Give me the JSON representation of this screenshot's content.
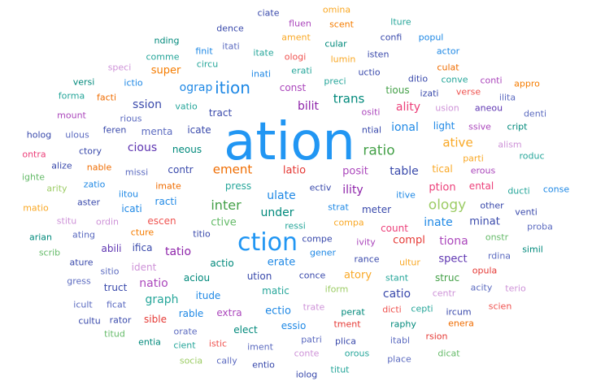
{
  "words": [
    {
      "text": "ation",
      "color": "#2196f3"
    },
    {
      "text": "ction",
      "color": "#2196f3"
    },
    {
      "text": "ition",
      "color": "#1e88e5"
    },
    {
      "text": "ratio",
      "color": "#43a047"
    },
    {
      "text": "inter",
      "color": "#43a047"
    },
    {
      "text": "ology",
      "color": "#9ccc65"
    },
    {
      "text": "ement",
      "color": "#ef6c00"
    },
    {
      "text": "ative",
      "color": "#f9a825"
    },
    {
      "text": "trans",
      "color": "#00897b"
    },
    {
      "text": "ssion",
      "color": "#3949ab"
    },
    {
      "text": "ograp",
      "color": "#1e88e5"
    },
    {
      "text": "table",
      "color": "#3949ab"
    },
    {
      "text": "ulate",
      "color": "#1e88e5"
    },
    {
      "text": "ility",
      "color": "#8e24aa"
    },
    {
      "text": "tatio",
      "color": "#8e24aa"
    },
    {
      "text": "graph",
      "color": "#26a69a"
    },
    {
      "text": "catio",
      "color": "#3949ab"
    },
    {
      "text": "tiona",
      "color": "#ab47bc"
    },
    {
      "text": "natio",
      "color": "#ab47bc"
    },
    {
      "text": "inate",
      "color": "#1e88e5"
    },
    {
      "text": "under",
      "color": "#00897b"
    },
    {
      "text": "ality",
      "color": "#ec407a"
    },
    {
      "text": "cious",
      "color": "#5e35b1"
    },
    {
      "text": "ional",
      "color": "#1e88e5"
    },
    {
      "text": "latio",
      "color": "#e53935"
    },
    {
      "text": "posit",
      "color": "#ab47bc"
    },
    {
      "text": "ption",
      "color": "#ec407a"
    },
    {
      "text": "ctive",
      "color": "#66bb6a"
    },
    {
      "text": "erate",
      "color": "#1e88e5"
    },
    {
      "text": "ectio",
      "color": "#1e88e5"
    },
    {
      "text": "atory",
      "color": "#f9a825"
    },
    {
      "text": "spect",
      "color": "#5e35b1"
    },
    {
      "text": "compl",
      "color": "#e53935"
    },
    {
      "text": "minat",
      "color": "#3949ab"
    },
    {
      "text": "bilit",
      "color": "#8e24aa"
    },
    {
      "text": "tract",
      "color": "#3949ab"
    },
    {
      "text": "menta",
      "color": "#5c6bc0"
    },
    {
      "text": "icate",
      "color": "#3949ab"
    },
    {
      "text": "super",
      "color": "#f57c00"
    },
    {
      "text": "const",
      "color": "#ab47bc"
    },
    {
      "text": "press",
      "color": "#26a69a"
    },
    {
      "text": "actio",
      "color": "#00897b"
    },
    {
      "text": "aciou",
      "color": "#00897b"
    },
    {
      "text": "itude",
      "color": "#1e88e5"
    },
    {
      "text": "struc",
      "color": "#43a047"
    },
    {
      "text": "ution",
      "color": "#3949ab"
    },
    {
      "text": "matic",
      "color": "#26a69a"
    },
    {
      "text": "elect",
      "color": "#00897b"
    },
    {
      "text": "essio",
      "color": "#1e88e5"
    },
    {
      "text": "extra",
      "color": "#ab47bc"
    },
    {
      "text": "rable",
      "color": "#1e88e5"
    },
    {
      "text": "sible",
      "color": "#e53935"
    },
    {
      "text": "tious",
      "color": "#43a047"
    },
    {
      "text": "meter",
      "color": "#3949ab"
    },
    {
      "text": "count",
      "color": "#ec407a"
    },
    {
      "text": "tical",
      "color": "#f9a825"
    },
    {
      "text": "ental",
      "color": "#ec407a"
    },
    {
      "text": "neous",
      "color": "#00897b"
    },
    {
      "text": "contr",
      "color": "#3949ab"
    },
    {
      "text": "racti",
      "color": "#1e88e5"
    },
    {
      "text": "escen",
      "color": "#ef5350"
    },
    {
      "text": "icati",
      "color": "#1e88e5"
    },
    {
      "text": "abili",
      "color": "#5e35b1"
    },
    {
      "text": "ifica",
      "color": "#3949ab"
    },
    {
      "text": "truct",
      "color": "#3949ab"
    },
    {
      "text": "ident",
      "color": "#ce93d8"
    },
    {
      "text": "cture",
      "color": "#f57c00"
    },
    {
      "text": "imate",
      "color": "#ef6c00"
    },
    {
      "text": "erous",
      "color": "#ab47bc"
    },
    {
      "text": "itive",
      "color": "#1e88e5"
    },
    {
      "text": "strat",
      "color": "#1e88e5"
    },
    {
      "text": "ectiv",
      "color": "#3949ab"
    },
    {
      "text": "light",
      "color": "#1e88e5"
    },
    {
      "text": "ssive",
      "color": "#ab47bc"
    },
    {
      "text": "ntial",
      "color": "#3949ab"
    },
    {
      "text": "ositi",
      "color": "#ab47bc"
    },
    {
      "text": "aneou",
      "color": "#5e35b1"
    },
    {
      "text": "cript",
      "color": "#00897b"
    },
    {
      "text": "denti",
      "color": "#5c6bc0"
    },
    {
      "text": "usion",
      "color": "#ce93d8"
    },
    {
      "text": "verse",
      "color": "#ef5350"
    },
    {
      "text": "ilita",
      "color": "#5c6bc0"
    },
    {
      "text": "conti",
      "color": "#ab47bc"
    },
    {
      "text": "appro",
      "color": "#f57c00"
    },
    {
      "text": "izati",
      "color": "#3949ab"
    },
    {
      "text": "ditio",
      "color": "#3949ab"
    },
    {
      "text": "conve",
      "color": "#26a69a"
    },
    {
      "text": "culat",
      "color": "#ef6c00"
    },
    {
      "text": "actor",
      "color": "#1e88e5"
    },
    {
      "text": "popul",
      "color": "#1e88e5"
    },
    {
      "text": "confi",
      "color": "#3949ab"
    },
    {
      "text": "lture",
      "color": "#26a69a"
    },
    {
      "text": "omina",
      "color": "#f9a825"
    },
    {
      "text": "scent",
      "color": "#f57c00"
    },
    {
      "text": "fluen",
      "color": "#ab47bc"
    },
    {
      "text": "ciate",
      "color": "#3949ab"
    },
    {
      "text": "dence",
      "color": "#3949ab"
    },
    {
      "text": "ament",
      "color": "#f9a825"
    },
    {
      "text": "cular",
      "color": "#00897b"
    },
    {
      "text": "isten",
      "color": "#3949ab"
    },
    {
      "text": "lumin",
      "color": "#f9a825"
    },
    {
      "text": "ologi",
      "color": "#ef5350"
    },
    {
      "text": "itate",
      "color": "#26a69a"
    },
    {
      "text": "erati",
      "color": "#26a69a"
    },
    {
      "text": "uctio",
      "color": "#3949ab"
    },
    {
      "text": "preci",
      "color": "#26a69a"
    },
    {
      "text": "inati",
      "color": "#1e88e5"
    },
    {
      "text": "circu",
      "color": "#26a69a"
    },
    {
      "text": "finit",
      "color": "#1e88e5"
    },
    {
      "text": "itati",
      "color": "#5c6bc0"
    },
    {
      "text": "nding",
      "color": "#00897b"
    },
    {
      "text": "comme",
      "color": "#26a69a"
    },
    {
      "text": "speci",
      "color": "#ce93d8"
    },
    {
      "text": "versi",
      "color": "#00897b"
    },
    {
      "text": "ictio",
      "color": "#1e88e5"
    },
    {
      "text": "forma",
      "color": "#26a69a"
    },
    {
      "text": "facti",
      "color": "#ef6c00"
    },
    {
      "text": "rious",
      "color": "#5c6bc0"
    },
    {
      "text": "vatio",
      "color": "#26a69a"
    },
    {
      "text": "mount",
      "color": "#ab47bc"
    },
    {
      "text": "holog",
      "color": "#3949ab"
    },
    {
      "text": "ulous",
      "color": "#5c6bc0"
    },
    {
      "text": "feren",
      "color": "#3949ab"
    },
    {
      "text": "ctory",
      "color": "#3949ab"
    },
    {
      "text": "ontra",
      "color": "#ec407a"
    },
    {
      "text": "alize",
      "color": "#3949ab"
    },
    {
      "text": "nable",
      "color": "#ef6c00"
    },
    {
      "text": "missi",
      "color": "#5c6bc0"
    },
    {
      "text": "ighte",
      "color": "#66bb6a"
    },
    {
      "text": "zatio",
      "color": "#1e88e5"
    },
    {
      "text": "arity",
      "color": "#9ccc65"
    },
    {
      "text": "iitou",
      "color": "#1e88e5"
    },
    {
      "text": "aster",
      "color": "#3949ab"
    },
    {
      "text": "matio",
      "color": "#f9a825"
    },
    {
      "text": "stitu",
      "color": "#ce93d8"
    },
    {
      "text": "ordin",
      "color": "#ce93d8"
    },
    {
      "text": "arian",
      "color": "#00897b"
    },
    {
      "text": "ating",
      "color": "#5c6bc0"
    },
    {
      "text": "scrib",
      "color": "#66bb6a"
    },
    {
      "text": "ature",
      "color": "#3949ab"
    },
    {
      "text": "sitio",
      "color": "#5c6bc0"
    },
    {
      "text": "gress",
      "color": "#5c6bc0"
    },
    {
      "text": "icult",
      "color": "#5c6bc0"
    },
    {
      "text": "ficat",
      "color": "#5c6bc0"
    },
    {
      "text": "cultu",
      "color": "#3949ab"
    },
    {
      "text": "rator",
      "color": "#3949ab"
    },
    {
      "text": "titud",
      "color": "#66bb6a"
    },
    {
      "text": "entia",
      "color": "#00897b"
    },
    {
      "text": "orate",
      "color": "#5c6bc0"
    },
    {
      "text": "cient",
      "color": "#26a69a"
    },
    {
      "text": "istic",
      "color": "#ef5350"
    },
    {
      "text": "socia",
      "color": "#9ccc65"
    },
    {
      "text": "cally",
      "color": "#5c6bc0"
    },
    {
      "text": "iment",
      "color": "#5c6bc0"
    },
    {
      "text": "entio",
      "color": "#3949ab"
    },
    {
      "text": "patri",
      "color": "#5c6bc0"
    },
    {
      "text": "conte",
      "color": "#ce93d8"
    },
    {
      "text": "plica",
      "color": "#3949ab"
    },
    {
      "text": "orous",
      "color": "#26a69a"
    },
    {
      "text": "iolog",
      "color": "#3949ab"
    },
    {
      "text": "titut",
      "color": "#26a69a"
    },
    {
      "text": "tment",
      "color": "#e53935"
    },
    {
      "text": "perat",
      "color": "#00897b"
    },
    {
      "text": "raphy",
      "color": "#00897b"
    },
    {
      "text": "itabl",
      "color": "#5c6bc0"
    },
    {
      "text": "place",
      "color": "#5c6bc0"
    },
    {
      "text": "rsion",
      "color": "#e53935"
    },
    {
      "text": "dicat",
      "color": "#66bb6a"
    },
    {
      "text": "enera",
      "color": "#ef6c00"
    },
    {
      "text": "ircum",
      "color": "#3949ab"
    },
    {
      "text": "scien",
      "color": "#ef5350"
    },
    {
      "text": "dicti",
      "color": "#ef5350"
    },
    {
      "text": "cepti",
      "color": "#26a69a"
    },
    {
      "text": "centr",
      "color": "#ce93d8"
    },
    {
      "text": "acity",
      "color": "#5c6bc0"
    },
    {
      "text": "terio",
      "color": "#ce93d8"
    },
    {
      "text": "opula",
      "color": "#e53935"
    },
    {
      "text": "trate",
      "color": "#ce93d8"
    },
    {
      "text": "iform",
      "color": "#9ccc65"
    },
    {
      "text": "conce",
      "color": "#3949ab"
    },
    {
      "text": "stant",
      "color": "#26a69a"
    },
    {
      "text": "ultur",
      "color": "#f9a825"
    },
    {
      "text": "rance",
      "color": "#3949ab"
    },
    {
      "text": "gener",
      "color": "#1e88e5"
    },
    {
      "text": "compe",
      "color": "#3949ab"
    },
    {
      "text": "ivity",
      "color": "#ab47bc"
    },
    {
      "text": "rdina",
      "color": "#5c6bc0"
    },
    {
      "text": "onstr",
      "color": "#66bb6a"
    },
    {
      "text": "simil",
      "color": "#00897b"
    },
    {
      "text": "proba",
      "color": "#5c6bc0"
    },
    {
      "text": "venti",
      "color": "#3949ab"
    },
    {
      "text": "other",
      "color": "#3949ab"
    },
    {
      "text": "conse",
      "color": "#1e88e5"
    },
    {
      "text": "ducti",
      "color": "#26a69a"
    },
    {
      "text": "roduc",
      "color": "#26a69a"
    },
    {
      "text": "alism",
      "color": "#ce93d8"
    },
    {
      "text": "parti",
      "color": "#f9a825"
    },
    {
      "text": "compa",
      "color": "#f9a825"
    },
    {
      "text": "ressi",
      "color": "#26a69a"
    },
    {
      "text": "titio",
      "color": "#3949ab"
    }
  ]
}
